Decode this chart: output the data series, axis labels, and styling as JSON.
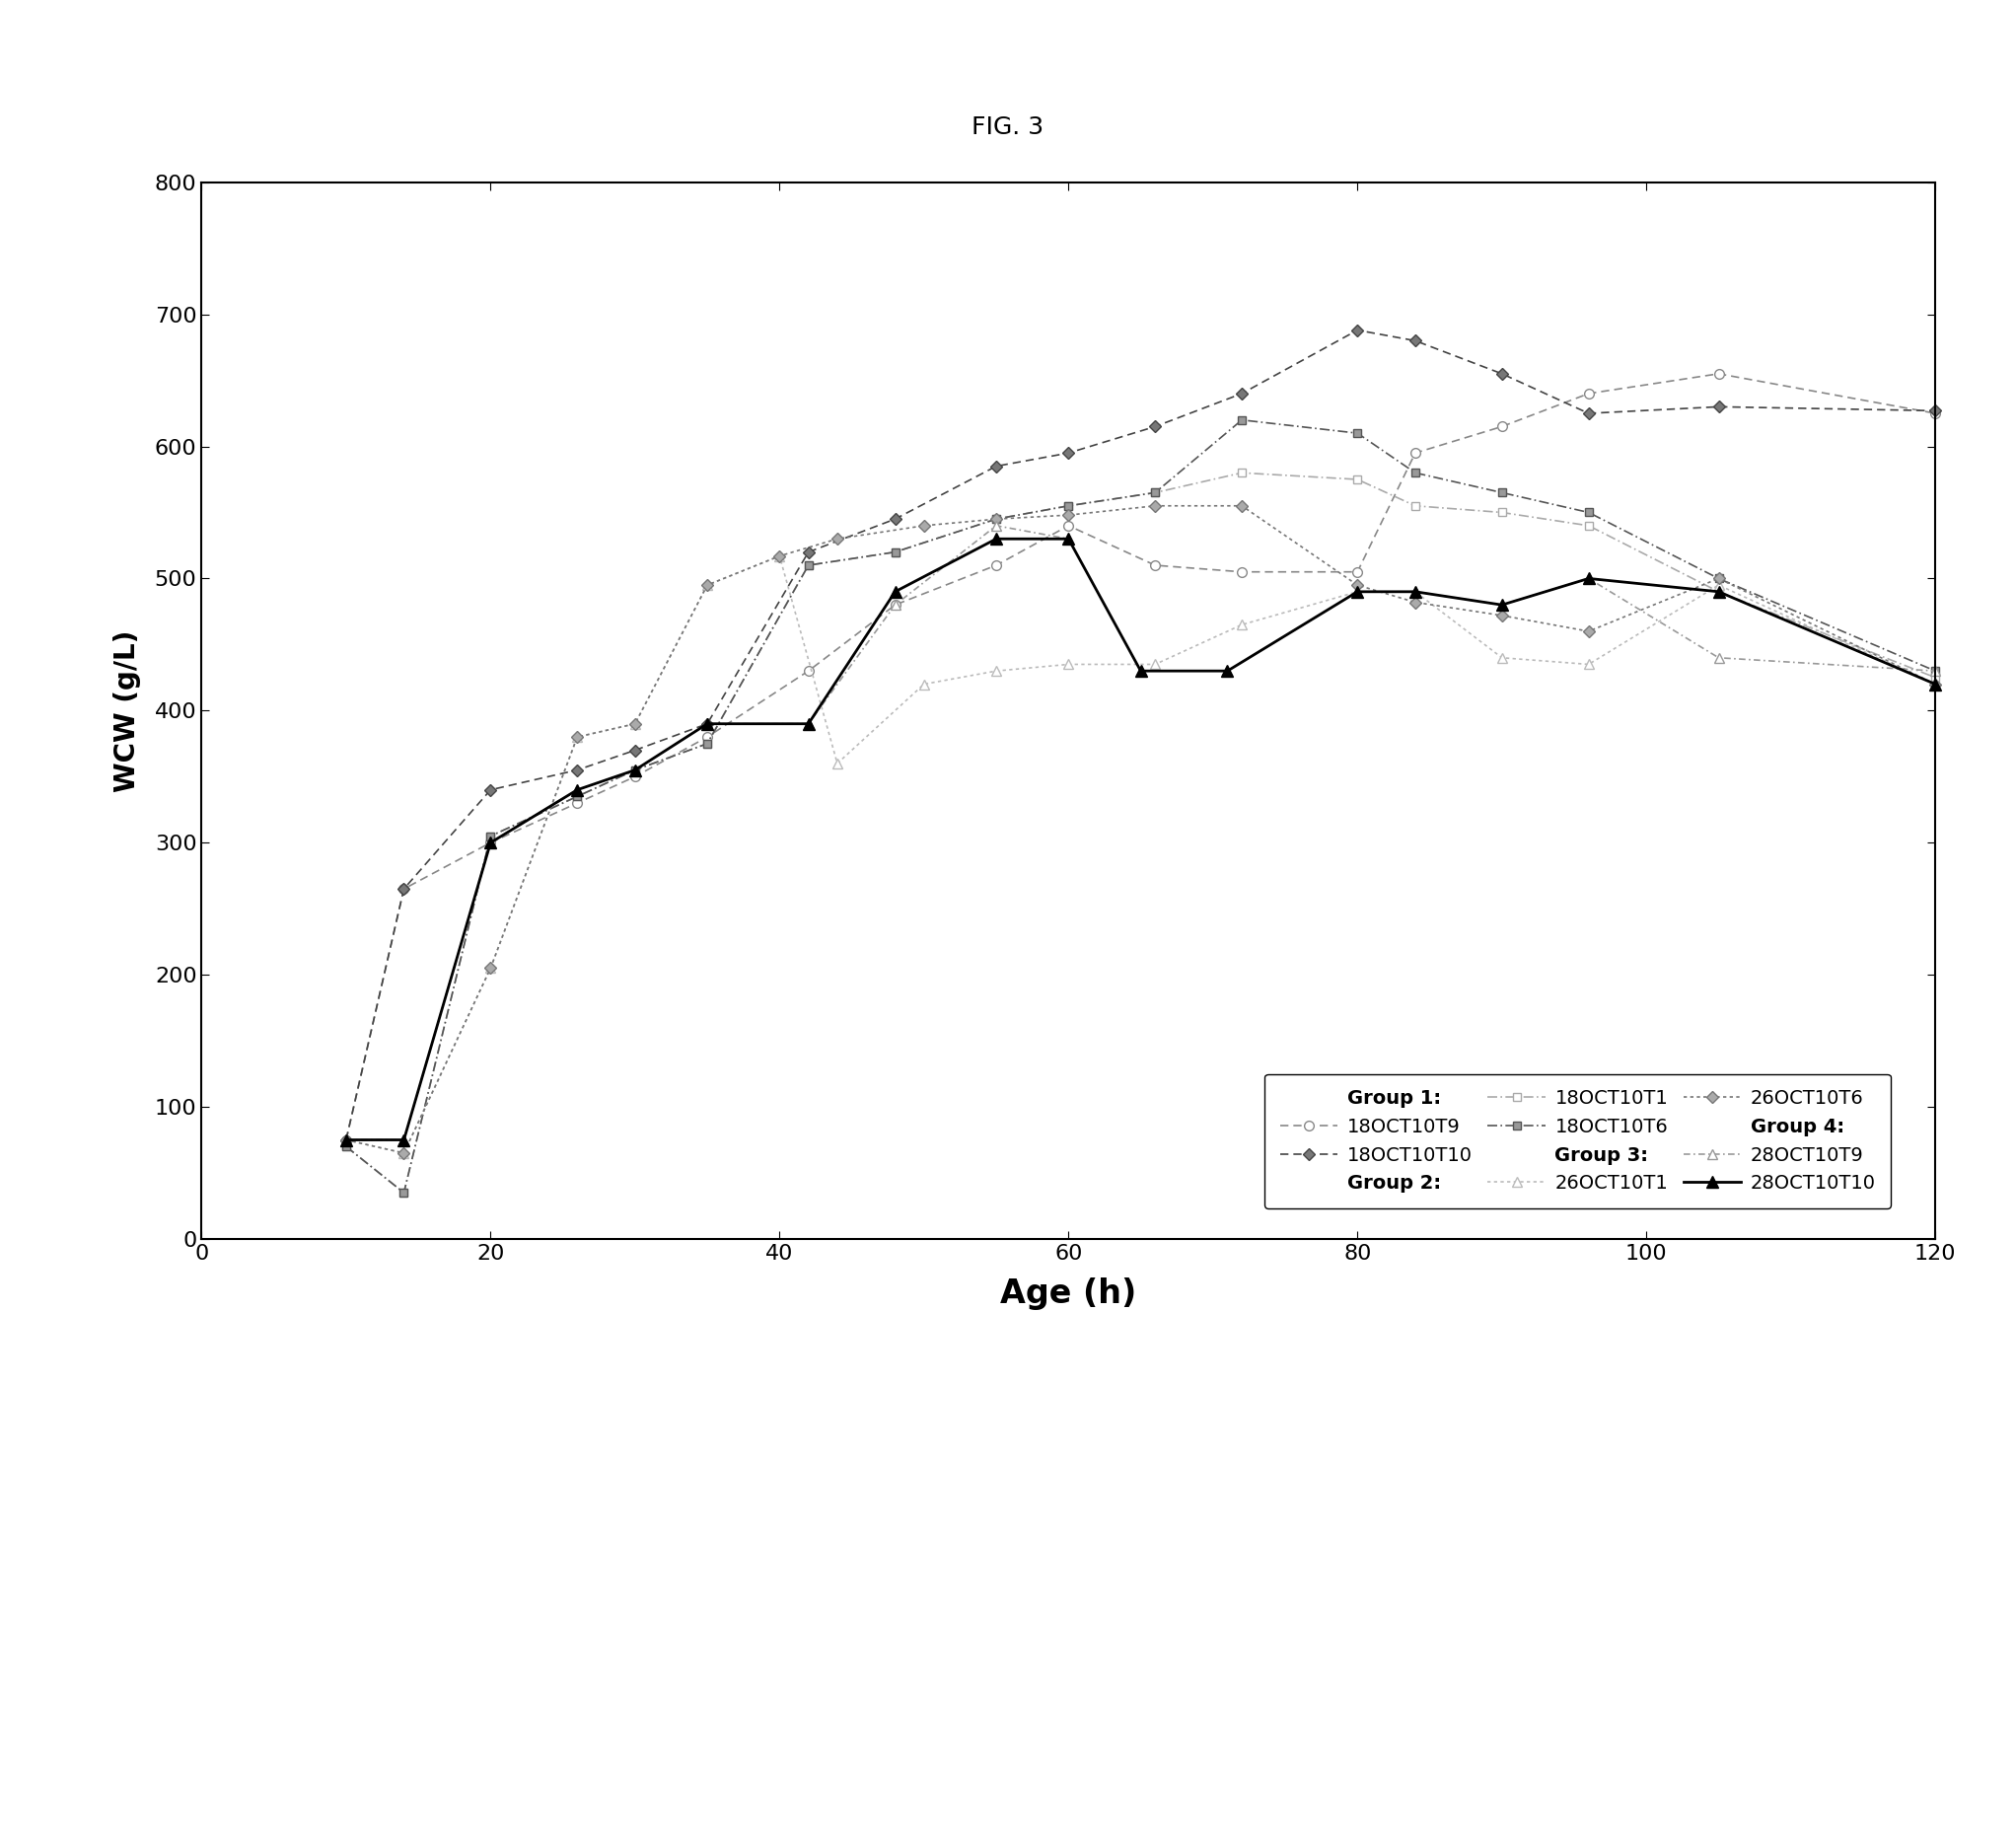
{
  "title": "FIG. 3",
  "xlabel": "Age (h)",
  "ylabel": "WCW (g/L)",
  "xlim": [
    0,
    120
  ],
  "ylim": [
    0,
    800
  ],
  "xticks": [
    0,
    20,
    40,
    60,
    80,
    100,
    120
  ],
  "yticks": [
    0,
    100,
    200,
    300,
    400,
    500,
    600,
    700,
    800
  ],
  "series": [
    {
      "label": "18OCT10T9",
      "group": "Group 1",
      "x": [
        10,
        14,
        20,
        26,
        30,
        35,
        42,
        48,
        55,
        60,
        66,
        72,
        80,
        84,
        90,
        96,
        105,
        120
      ],
      "y": [
        75,
        265,
        300,
        330,
        350,
        380,
        430,
        480,
        510,
        540,
        510,
        505,
        505,
        595,
        615,
        640,
        655,
        625
      ],
      "color": "#888888",
      "linestyle": "--",
      "marker": "o",
      "markersize": 7,
      "markerfacecolor": "white",
      "markeredgecolor": "#888888",
      "linewidth": 1.2,
      "dashes": [
        5,
        3
      ]
    },
    {
      "label": "18OCT10T10",
      "group": "Group 1",
      "x": [
        10,
        14,
        20,
        26,
        30,
        35,
        42,
        48,
        55,
        60,
        66,
        72,
        80,
        84,
        90,
        96,
        105,
        120
      ],
      "y": [
        75,
        265,
        340,
        355,
        370,
        390,
        520,
        545,
        585,
        595,
        615,
        640,
        688,
        680,
        655,
        625,
        630,
        627
      ],
      "color": "#444444",
      "linestyle": "--",
      "marker": "D",
      "markersize": 6,
      "markerfacecolor": "#777777",
      "markeredgecolor": "#444444",
      "linewidth": 1.2,
      "dashes": [
        5,
        3
      ]
    },
    {
      "label": "18OCT10T1",
      "group": "Group 2",
      "x": [
        10,
        14,
        20,
        26,
        30,
        35,
        42,
        48,
        55,
        60,
        66,
        72,
        80,
        84,
        90,
        96,
        105,
        120
      ],
      "y": [
        70,
        35,
        305,
        335,
        355,
        375,
        510,
        520,
        545,
        555,
        565,
        580,
        575,
        555,
        550,
        540,
        490,
        425
      ],
      "color": "#aaaaaa",
      "linestyle": "--",
      "marker": "s",
      "markersize": 6,
      "markerfacecolor": "white",
      "markeredgecolor": "#aaaaaa",
      "linewidth": 1.2,
      "dashes": [
        6,
        2,
        1,
        2
      ]
    },
    {
      "label": "18OCT10T6",
      "group": "Group 2",
      "x": [
        10,
        14,
        20,
        26,
        30,
        35,
        42,
        48,
        55,
        60,
        66,
        72,
        80,
        84,
        90,
        96,
        105,
        120
      ],
      "y": [
        70,
        35,
        305,
        335,
        355,
        375,
        510,
        520,
        545,
        555,
        565,
        620,
        610,
        580,
        565,
        550,
        500,
        430
      ],
      "color": "#555555",
      "linestyle": "--",
      "marker": "s",
      "markersize": 6,
      "markerfacecolor": "#999999",
      "markeredgecolor": "#555555",
      "linewidth": 1.2,
      "dashes": [
        6,
        2,
        1,
        2
      ]
    },
    {
      "label": "26OCT10T1",
      "group": "Group 3",
      "x": [
        10,
        14,
        20,
        26,
        30,
        35,
        40,
        44,
        50,
        55,
        60,
        66,
        72,
        80,
        84,
        90,
        96,
        105,
        120
      ],
      "y": [
        75,
        65,
        205,
        380,
        390,
        495,
        517,
        360,
        420,
        430,
        435,
        435,
        465,
        490,
        490,
        440,
        435,
        495,
        420
      ],
      "color": "#bbbbbb",
      "linestyle": "--",
      "marker": "^",
      "markersize": 7,
      "markerfacecolor": "white",
      "markeredgecolor": "#bbbbbb",
      "linewidth": 1.2,
      "dashes": [
        2,
        2
      ]
    },
    {
      "label": "26OCT10T6",
      "group": "Group 3",
      "x": [
        10,
        14,
        20,
        26,
        30,
        35,
        40,
        44,
        50,
        55,
        60,
        66,
        72,
        80,
        84,
        90,
        96,
        105,
        120
      ],
      "y": [
        75,
        65,
        205,
        380,
        390,
        495,
        517,
        530,
        540,
        545,
        548,
        555,
        555,
        495,
        482,
        472,
        460,
        500,
        420
      ],
      "color": "#777777",
      "linestyle": "--",
      "marker": "D",
      "markersize": 6,
      "markerfacecolor": "#aaaaaa",
      "markeredgecolor": "#777777",
      "linewidth": 1.2,
      "dashes": [
        2,
        2
      ]
    },
    {
      "label": "28OCT10T9",
      "group": "Group 4",
      "x": [
        10,
        14,
        20,
        26,
        30,
        35,
        42,
        48,
        55,
        60,
        65,
        71,
        80,
        84,
        90,
        96,
        105,
        120
      ],
      "y": [
        75,
        75,
        300,
        340,
        355,
        390,
        390,
        480,
        540,
        530,
        430,
        430,
        490,
        490,
        480,
        500,
        440,
        430
      ],
      "color": "#999999",
      "linestyle": "--",
      "marker": "^",
      "markersize": 7,
      "markerfacecolor": "white",
      "markeredgecolor": "#999999",
      "linewidth": 1.2,
      "dashes": [
        4,
        2,
        1,
        2
      ]
    },
    {
      "label": "28OCT10T10",
      "group": "Group 4",
      "x": [
        10,
        14,
        20,
        26,
        30,
        35,
        42,
        48,
        55,
        60,
        65,
        71,
        80,
        84,
        90,
        96,
        105,
        120
      ],
      "y": [
        75,
        75,
        300,
        340,
        355,
        390,
        390,
        490,
        530,
        530,
        430,
        430,
        490,
        490,
        480,
        500,
        490,
        420
      ],
      "color": "#000000",
      "linestyle": "-",
      "marker": "^",
      "markersize": 9,
      "markerfacecolor": "#000000",
      "markeredgecolor": "#000000",
      "linewidth": 2.0,
      "dashes": []
    }
  ],
  "legend_groups": [
    {
      "group": "Group 1:",
      "left": "18OCT10T9",
      "right": "18OCT10T10"
    },
    {
      "group": "Group 2:",
      "left": "18OCT10T1",
      "right": "18OCT10T6"
    },
    {
      "group": "Group 3:",
      "left": "26OCT10T1",
      "right": "26OCT10T6"
    },
    {
      "group": "Group 4:",
      "left": "28OCT10T9",
      "right": "28OCT10T10"
    }
  ],
  "background_color": "#ffffff",
  "plot_bg_color": "#ffffff",
  "fig_title_fontsize": 18,
  "axis_label_fontsize": 24,
  "ylabel_fontsize": 20,
  "tick_fontsize": 16,
  "legend_fontsize": 14
}
